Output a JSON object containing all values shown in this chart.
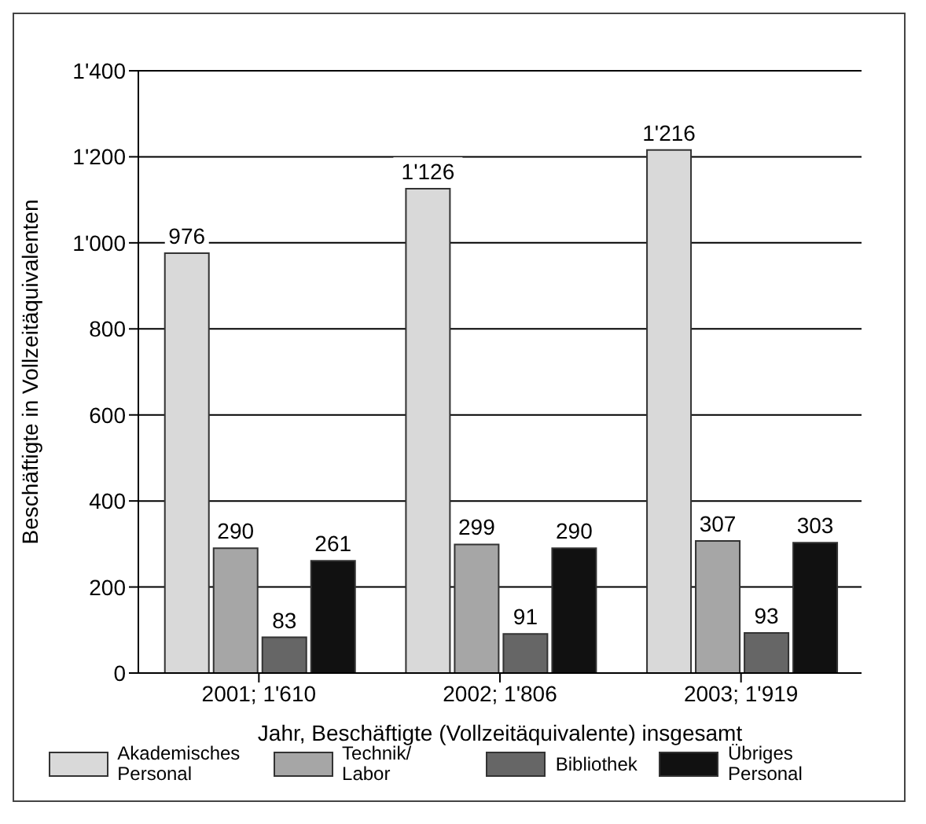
{
  "chart_data": {
    "type": "bar",
    "xlabel": "Jahr, Beschäftigte (Vollzeitäquivalente) insgesamt",
    "ylabel": "Beschäftigte in Vollzeitäquivalenten",
    "categories": [
      "2001; 1'610",
      "2002; 1'806",
      "2003; 1'919"
    ],
    "series": [
      {
        "name": "Akademisches Personal",
        "color": "#d9d9d9",
        "values": [
          976,
          1126,
          1216
        ],
        "value_labels": [
          "976",
          "1'126",
          "1'216"
        ]
      },
      {
        "name": "Technik/ Labor",
        "color": "#a6a6a6",
        "values": [
          290,
          299,
          307
        ],
        "value_labels": [
          "290",
          "299",
          "307"
        ]
      },
      {
        "name": "Bibliothek",
        "color": "#666666",
        "values": [
          83,
          91,
          93
        ],
        "value_labels": [
          "83",
          "91",
          "93"
        ]
      },
      {
        "name": "Übriges Personal",
        "color": "#111111",
        "values": [
          261,
          290,
          303
        ],
        "value_labels": [
          "261",
          "290",
          "303"
        ]
      }
    ],
    "ylim": [
      0,
      1400
    ],
    "yticks": [
      0,
      200,
      400,
      600,
      800,
      {
        "value": 1000,
        "label": "1'000"
      },
      {
        "value": 1200,
        "label": "1'200"
      },
      {
        "value": 1400,
        "label": "1'400"
      }
    ],
    "grid": "y",
    "legend": "bottom"
  }
}
